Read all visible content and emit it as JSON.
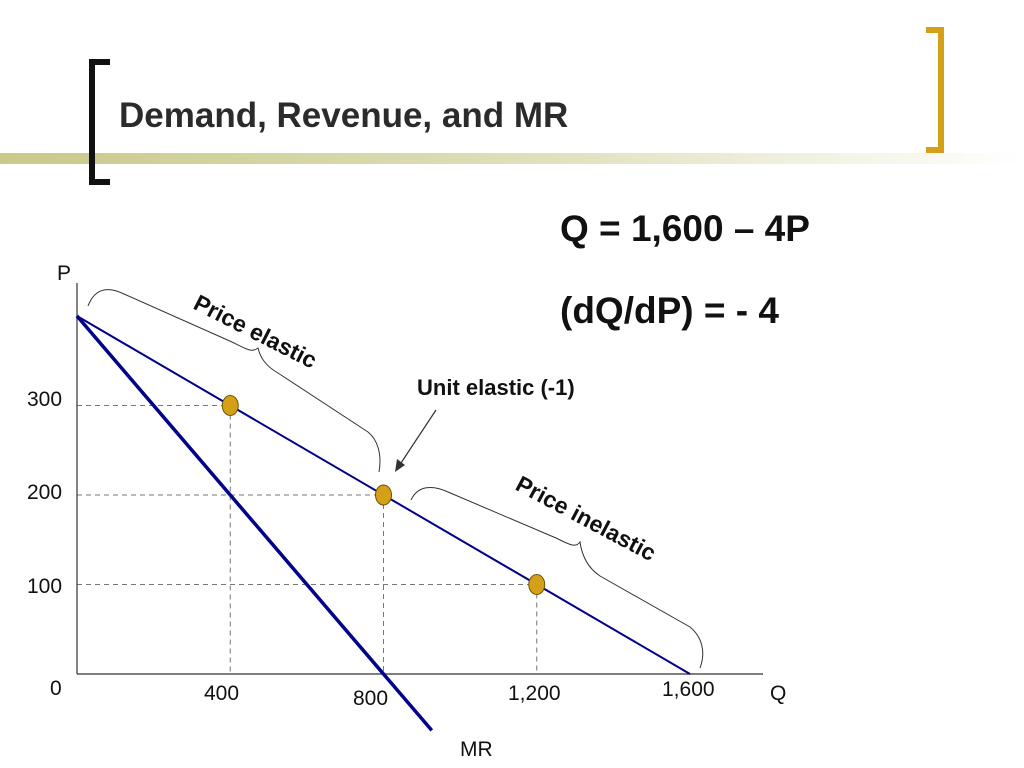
{
  "slide": {
    "title": "Demand, Revenue, and MR",
    "formula_1": "Q = 1,600 – 4P",
    "formula_2": "(dQ/dP) = - 4"
  },
  "colors": {
    "bracket_left": "#111111",
    "bracket_right": "#d4a017",
    "title_bar": "#c9c98a",
    "demand": "#00008b",
    "mr": "#00008b",
    "marker": "#d4a017",
    "guide": "#777777"
  },
  "chart_data": {
    "type": "line",
    "title": "",
    "xlabel": "Q",
    "ylabel": "P",
    "xlim": [
      0,
      1600
    ],
    "ylim": [
      0,
      400
    ],
    "x_ticks": [
      "400",
      "800",
      "1,200",
      "1,600"
    ],
    "y_ticks": [
      "300",
      "200",
      "100"
    ],
    "origin_label": "0",
    "series": [
      {
        "name": "",
        "points": [
          [
            0,
            400
          ],
          [
            1600,
            0
          ]
        ]
      },
      {
        "name": "MR",
        "points": [
          [
            0,
            400
          ],
          [
            800,
            0
          ],
          [
            926,
            -63
          ]
        ]
      }
    ],
    "markers": [
      [
        400,
        300
      ],
      [
        800,
        200
      ],
      [
        1200,
        100
      ]
    ],
    "annotations": {
      "price_elastic": "Price elastic",
      "unit_elastic": "Unit elastic (-1)",
      "price_inelastic": "Price inelastic"
    }
  }
}
